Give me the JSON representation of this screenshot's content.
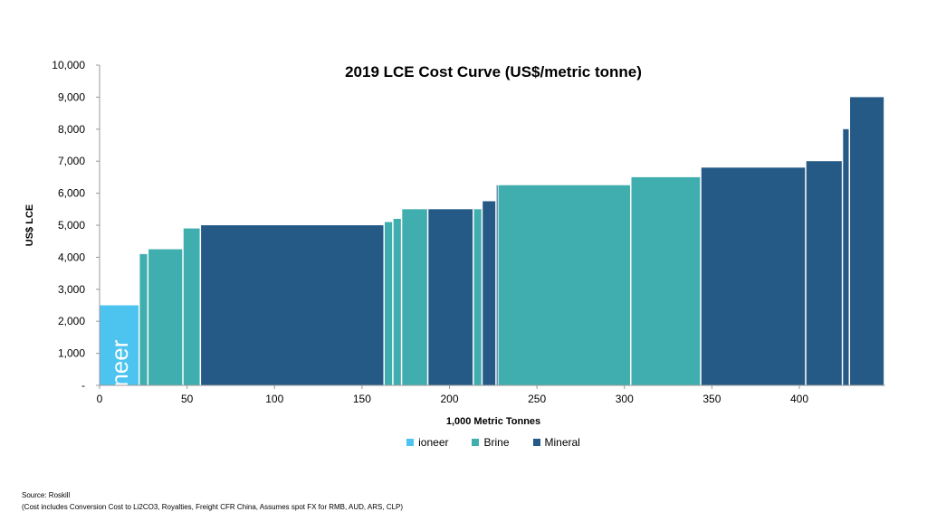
{
  "chart_data": {
    "type": "bar",
    "subtype": "variable-width cost curve",
    "title": "2019 LCE Cost Curve (US$/metric tonne)",
    "xlabel": "1,000 Metric Tonnes",
    "ylabel": "US$ LCE",
    "xlim": [
      0,
      449
    ],
    "ylim": [
      0,
      10000
    ],
    "x_ticks": [
      "0",
      "50",
      "100",
      "150",
      "200",
      "250",
      "300",
      "350",
      "400"
    ],
    "y_ticks": [
      "-",
      "1,000",
      "2,000",
      "3,000",
      "4,000",
      "5,000",
      "6,000",
      "7,000",
      "8,000",
      "9,000",
      "10,000"
    ],
    "grid": false,
    "legend_position": "bottom",
    "colors": {
      "ioneer": "#4dc3ef",
      "Brine": "#40aeae",
      "Mineral": "#255a87"
    },
    "legend": [
      "ioneer",
      "Brine",
      "Mineral"
    ],
    "bar_label": "ioneer",
    "bars": [
      {
        "x0": 0,
        "x1": 23,
        "value": 2500,
        "type": "ioneer"
      },
      {
        "x0": 23,
        "x1": 28,
        "value": 4100,
        "type": "Brine"
      },
      {
        "x0": 28,
        "x1": 48,
        "value": 4250,
        "type": "Brine"
      },
      {
        "x0": 48,
        "x1": 58,
        "value": 4900,
        "type": "Brine"
      },
      {
        "x0": 58,
        "x1": 163,
        "value": 5000,
        "type": "Mineral"
      },
      {
        "x0": 163,
        "x1": 168,
        "value": 5100,
        "type": "Brine"
      },
      {
        "x0": 168,
        "x1": 173,
        "value": 5200,
        "type": "Brine"
      },
      {
        "x0": 173,
        "x1": 188,
        "value": 5500,
        "type": "Brine"
      },
      {
        "x0": 188,
        "x1": 214,
        "value": 5500,
        "type": "Mineral"
      },
      {
        "x0": 214,
        "x1": 219,
        "value": 5500,
        "type": "Brine"
      },
      {
        "x0": 219,
        "x1": 227,
        "value": 5750,
        "type": "Mineral"
      },
      {
        "x0": 227,
        "x1": 228,
        "value": 6250,
        "type": "Mineral"
      },
      {
        "x0": 228,
        "x1": 304,
        "value": 6250,
        "type": "Brine"
      },
      {
        "x0": 304,
        "x1": 344,
        "value": 6500,
        "type": "Brine"
      },
      {
        "x0": 344,
        "x1": 404,
        "value": 6800,
        "type": "Mineral"
      },
      {
        "x0": 404,
        "x1": 425,
        "value": 7000,
        "type": "Mineral"
      },
      {
        "x0": 425,
        "x1": 429,
        "value": 8000,
        "type": "Mineral"
      },
      {
        "x0": 429,
        "x1": 449,
        "value": 9000,
        "type": "Mineral"
      }
    ]
  },
  "footer": {
    "source": "Source: Roskill",
    "note": "(Cost includes Conversion Cost to Li2CO3,  Royalties, Freight CFR China, Assumes spot FX for RMB, AUD, ARS, CLP)"
  }
}
